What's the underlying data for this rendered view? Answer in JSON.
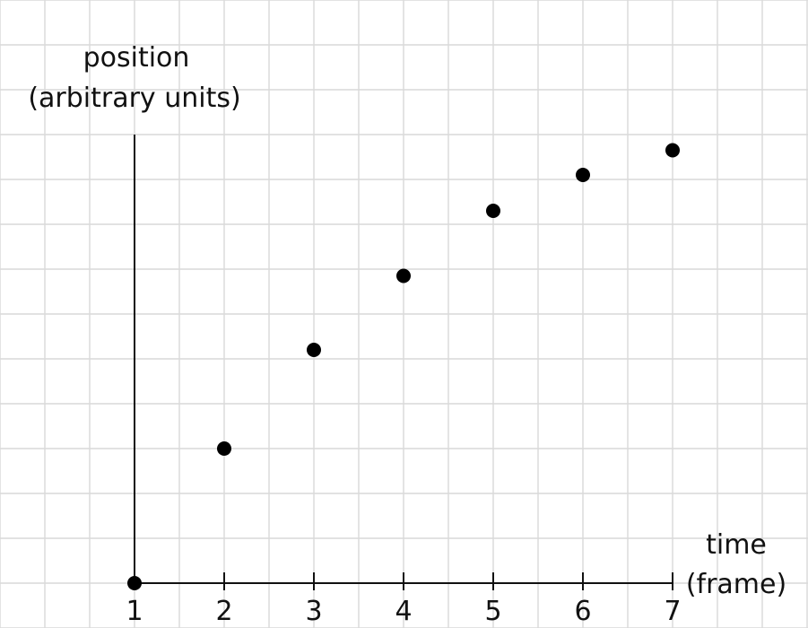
{
  "chart_data": {
    "type": "scatter",
    "title": "",
    "xlabel_lines": [
      "time",
      "(frame)"
    ],
    "ylabel_lines": [
      "position",
      "(arbitrary units)"
    ],
    "x": [
      1,
      2,
      3,
      4,
      5,
      6,
      7
    ],
    "y": [
      0,
      3,
      5.2,
      6.85,
      8.3,
      9.1,
      9.65
    ],
    "xticks": [
      "1",
      "2",
      "3",
      "4",
      "5",
      "6",
      "7"
    ],
    "xlim": [
      1,
      7
    ],
    "ylim": [
      0,
      10
    ],
    "grid": true,
    "colors": {
      "background": "#ffffff",
      "grid": "#d9d9d9",
      "axis": "#111111",
      "points": "#000000",
      "text": "#111111"
    }
  }
}
